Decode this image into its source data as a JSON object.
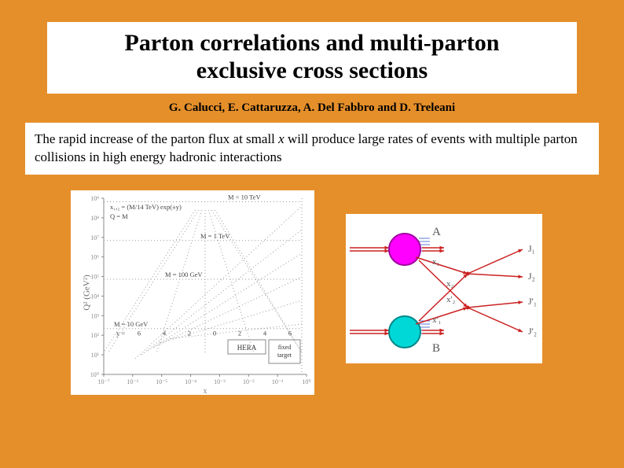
{
  "title_line1": "Parton correlations and multi-parton",
  "title_line2": "exclusive cross sections",
  "authors": "G. Calucci, E. Cattaruzza, A. Del Fabbro and D. Treleani",
  "statement_pre": "The rapid increase of the parton flux at small ",
  "statement_x": "x",
  "statement_post": " will produce large rates of events with multiple parton collisions in high energy hadronic interactions",
  "left_plot": {
    "y_axis_label": "Q² (GeV²)",
    "x_axis_label": "x",
    "top_formula": "x₁,₂ = (M/14 TeV) exp(±y)",
    "q_label": "Q = M",
    "line_M10TeV": "M = 10 TeV",
    "line_M1TeV": "M = 1 TeV",
    "line_M100GeV": "M = 100 GeV",
    "line_M10GeV": "M = 10 GeV",
    "y_row_label": "y =",
    "y_values": [
      "6",
      "4",
      "2",
      "0",
      "2",
      "4",
      "6"
    ],
    "box_hera": "HERA",
    "box_fixed": "fixed target",
    "x_ticks": [
      "10⁻⁷",
      "10⁻⁶",
      "10⁻⁵",
      "10⁻⁴",
      "10⁻³",
      "10⁻²",
      "10⁻¹",
      "10⁰"
    ],
    "y_ticks": [
      "10⁰",
      "10¹",
      "10²",
      "10³",
      "10⁴",
      "10⁵",
      "10⁶",
      "10⁷",
      "10⁸",
      "10⁹"
    ],
    "colors": {
      "axis": "#888888",
      "dotted": "#999999",
      "bg": "#ffffff"
    }
  },
  "right_diagram": {
    "label_A": "A",
    "label_B": "B",
    "label_J1": "J₁",
    "label_J2": "J₂",
    "label_J1p": "J'₁",
    "label_J2p": "J'₂",
    "label_x1": "x₁",
    "label_x2": "x₂",
    "label_x1p": "x'₁",
    "label_x2p": "x'₂",
    "colors": {
      "blob_top_fill": "#ff00ff",
      "blob_top_stroke": "#a000a0",
      "blob_bottom_fill": "#00d8d8",
      "blob_bottom_stroke": "#008888",
      "line": "#cc2222",
      "hatch": "#5b7bd6",
      "text": "#555555"
    }
  }
}
